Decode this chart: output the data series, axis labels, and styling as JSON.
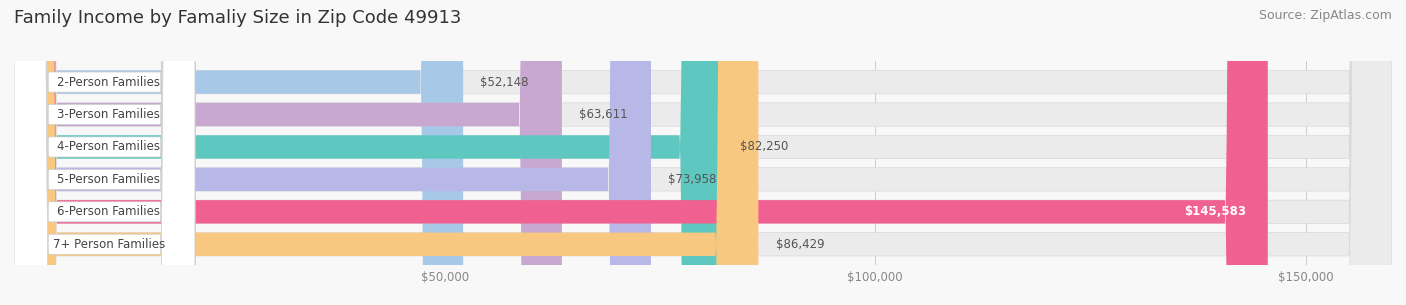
{
  "title": "Family Income by Famaliy Size in Zip Code 49913",
  "source": "Source: ZipAtlas.com",
  "categories": [
    "2-Person Families",
    "3-Person Families",
    "4-Person Families",
    "5-Person Families",
    "6-Person Families",
    "7+ Person Families"
  ],
  "values": [
    52148,
    63611,
    82250,
    73958,
    145583,
    86429
  ],
  "bar_colors": [
    "#a8c8e8",
    "#c8a8d0",
    "#5ec8c0",
    "#b8b8e8",
    "#f06090",
    "#f8c880"
  ],
  "xlim": [
    0,
    160000
  ],
  "xticks": [
    50000,
    100000,
    150000
  ],
  "xtick_labels": [
    "$50,000",
    "$100,000",
    "$150,000"
  ],
  "title_fontsize": 13,
  "source_fontsize": 9,
  "label_fontsize": 8.5,
  "value_fontsize": 8.5,
  "background_color": "#f8f8f8"
}
